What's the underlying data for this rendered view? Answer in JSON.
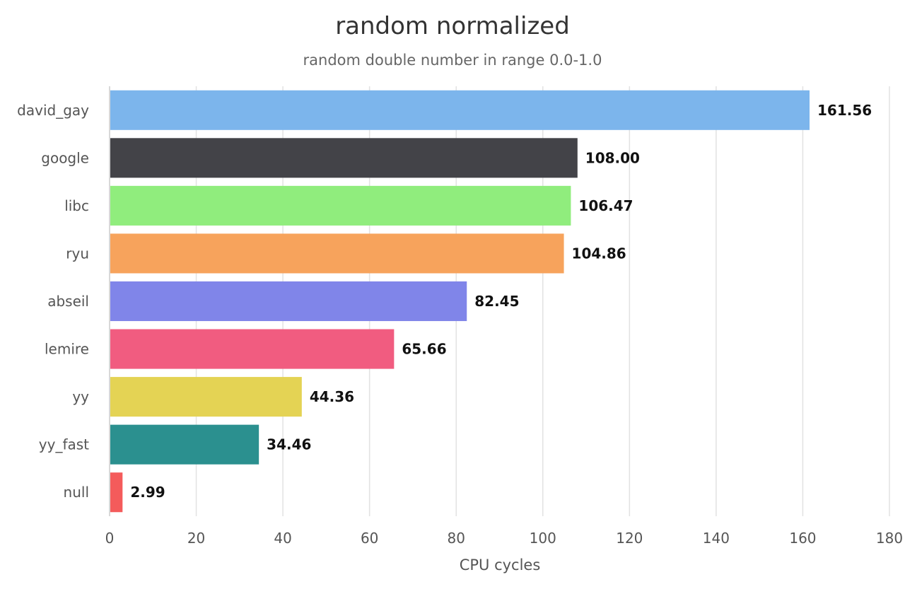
{
  "chart_data": {
    "type": "bar",
    "orientation": "horizontal",
    "title": "random normalized",
    "subtitle": "random double number in range 0.0-1.0",
    "xlabel": "CPU cycles",
    "ylabel": "",
    "xlim": [
      0,
      180
    ],
    "ticks": [
      0,
      20,
      40,
      60,
      80,
      100,
      120,
      140,
      160,
      180
    ],
    "grid": true,
    "legend": "none",
    "categories": [
      "david_gay",
      "google",
      "libc",
      "ryu",
      "abseil",
      "lemire",
      "yy",
      "yy_fast",
      "null"
    ],
    "values": [
      161.56,
      108.0,
      106.47,
      104.86,
      82.45,
      65.66,
      44.36,
      34.46,
      2.99
    ],
    "value_labels": [
      "161.56",
      "108.00",
      "106.47",
      "104.86",
      "82.45",
      "65.66",
      "44.36",
      "34.46",
      "2.99"
    ],
    "colors": [
      "#7cb5ec",
      "#434348",
      "#90ed7d",
      "#f7a35c",
      "#8085e9",
      "#f15c80",
      "#e4d354",
      "#2b908f",
      "#f45b5b"
    ]
  }
}
